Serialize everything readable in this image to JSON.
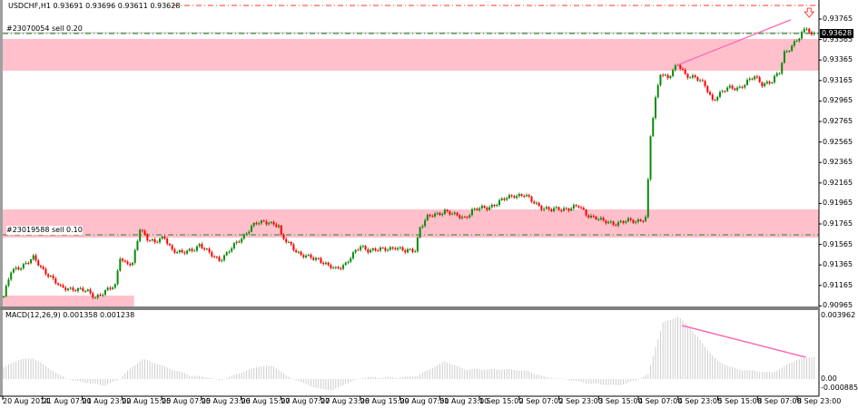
{
  "window": {
    "symbol_header": "USDCHF,H1  0.93691 0.93696 0.93611 0.93628",
    "current_price": "0.93628"
  },
  "orders": [
    {
      "label": "#23070054 sell 0.20",
      "price": 0.93623,
      "color": "#2e7d32"
    },
    {
      "label": "#23019588 sell 0.10",
      "price": 0.91659,
      "color": "#2e7d32"
    }
  ],
  "stop_line": {
    "price": 0.93898,
    "color": "#ff3030"
  },
  "zones": [
    {
      "top": 0.9357,
      "bottom": 0.93261,
      "from_bar": 0,
      "to_bar": 330
    },
    {
      "top": 0.91907,
      "bottom": 0.91632,
      "from_bar": 0,
      "to_bar": 330
    },
    {
      "top": 0.91066,
      "bottom": 0.909,
      "from_bar": 0,
      "to_bar": 53
    }
  ],
  "colors": {
    "bull": "#0a8a0a",
    "bear": "#ff0000",
    "zone": "#ffc0cb",
    "trendline": "#ff69b4",
    "histogram": "#c8c8c8"
  },
  "price_axis": [
    "0.93765",
    "0.93565",
    "0.93365",
    "0.93165",
    "0.92965",
    "0.92765",
    "0.92565",
    "0.92365",
    "0.92165",
    "0.91965",
    "0.91765",
    "0.91565",
    "0.91365",
    "0.91165",
    "0.90965"
  ],
  "macd": {
    "header": "MACD(12,26,9) 0.001358 0.001238",
    "axis_top": "0.003962",
    "axis_zero": "0.00",
    "axis_bottom": "-0.000885"
  },
  "time_axis": [
    "20 Aug 2014",
    "21 Aug 07:00",
    "21 Aug 23:00",
    "22 Aug 15:00",
    "25 Aug 07:00",
    "25 Aug 23:00",
    "26 Aug 15:00",
    "27 Aug 07:00",
    "27 Aug 23:00",
    "28 Aug 15:00",
    "29 Aug 07:00",
    "31 Aug 23:00",
    "1 Sep 15:00",
    "2 Sep 07:00",
    "2 Sep 23:00",
    "3 Sep 15:00",
    "4 Sep 07:00",
    "4 Sep 23:00",
    "5 Sep 15:00",
    "8 Sep 07:00",
    "8 Sep 23:00"
  ],
  "chart_data": {
    "type": "candlestick",
    "timeframe": "H1",
    "ylim": [
      0.909,
      0.9392
    ],
    "close_path": [
      [
        1,
        0.91137
      ],
      [
        3,
        0.91296
      ],
      [
        6,
        0.9134
      ],
      [
        12,
        0.91429
      ],
      [
        15,
        0.9134
      ],
      [
        19,
        0.91252
      ],
      [
        23,
        0.91137
      ],
      [
        28,
        0.91137
      ],
      [
        34,
        0.91101
      ],
      [
        37,
        0.91057
      ],
      [
        41,
        0.91101
      ],
      [
        45,
        0.91163
      ],
      [
        47,
        0.91455
      ],
      [
        49,
        0.91384
      ],
      [
        52,
        0.91366
      ],
      [
        55,
        0.91721
      ],
      [
        58,
        0.91632
      ],
      [
        61,
        0.91579
      ],
      [
        65,
        0.91632
      ],
      [
        68,
        0.91517
      ],
      [
        72,
        0.91473
      ],
      [
        76,
        0.91517
      ],
      [
        79,
        0.91562
      ],
      [
        83,
        0.91473
      ],
      [
        87,
        0.9142
      ],
      [
        90,
        0.91473
      ],
      [
        96,
        0.91632
      ],
      [
        100,
        0.91738
      ],
      [
        103,
        0.91774
      ],
      [
        107,
        0.91791
      ],
      [
        111,
        0.91738
      ],
      [
        112,
        0.91632
      ],
      [
        116,
        0.91562
      ],
      [
        120,
        0.91455
      ],
      [
        123,
        0.91437
      ],
      [
        127,
        0.91429
      ],
      [
        131,
        0.91349
      ],
      [
        134,
        0.91322
      ],
      [
        138,
        0.91384
      ],
      [
        142,
        0.91491
      ],
      [
        144,
        0.91544
      ],
      [
        147,
        0.91517
      ],
      [
        153,
        0.91508
      ],
      [
        158,
        0.91544
      ],
      [
        162,
        0.91491
      ],
      [
        166,
        0.91517
      ],
      [
        168,
        0.91738
      ],
      [
        171,
        0.91827
      ],
      [
        175,
        0.91862
      ],
      [
        178,
        0.91898
      ],
      [
        182,
        0.91845
      ],
      [
        186,
        0.91827
      ],
      [
        189,
        0.91898
      ],
      [
        195,
        0.91924
      ],
      [
        199,
        0.91969
      ],
      [
        202,
        0.92004
      ],
      [
        206,
        0.92048
      ],
      [
        210,
        0.92048
      ],
      [
        213,
        0.91986
      ],
      [
        217,
        0.91933
      ],
      [
        221,
        0.91898
      ],
      [
        226,
        0.91915
      ],
      [
        232,
        0.91933
      ],
      [
        235,
        0.91862
      ],
      [
        239,
        0.91827
      ],
      [
        242,
        0.91783
      ],
      [
        246,
        0.91774
      ],
      [
        252,
        0.91791
      ],
      [
        255,
        0.91791
      ],
      [
        259,
        0.91827
      ],
      [
        260,
        0.92181
      ],
      [
        261,
        0.92623
      ],
      [
        263,
        0.92977
      ],
      [
        265,
        0.93243
      ],
      [
        268,
        0.93199
      ],
      [
        272,
        0.93314
      ],
      [
        275,
        0.93225
      ],
      [
        279,
        0.93199
      ],
      [
        283,
        0.9311
      ],
      [
        286,
        0.92977
      ],
      [
        288,
        0.93022
      ],
      [
        292,
        0.93084
      ],
      [
        297,
        0.93101
      ],
      [
        303,
        0.93199
      ],
      [
        306,
        0.93137
      ],
      [
        310,
        0.93154
      ],
      [
        313,
        0.93243
      ],
      [
        315,
        0.93438
      ],
      [
        318,
        0.93508
      ],
      [
        321,
        0.93579
      ],
      [
        324,
        0.93685
      ],
      [
        326,
        0.93615
      ],
      [
        327,
        0.93628
      ]
    ],
    "macd_histogram_path": [
      [
        1,
        0.0008
      ],
      [
        6,
        0.0012
      ],
      [
        12,
        0.0013
      ],
      [
        17,
        0.0008
      ],
      [
        23,
        0.0002
      ],
      [
        28,
        -0.0001
      ],
      [
        36,
        -0.0003
      ],
      [
        41,
        -0.0004
      ],
      [
        47,
        0
      ],
      [
        50,
        0.0005
      ],
      [
        56,
        0.00125
      ],
      [
        61,
        0.001
      ],
      [
        68,
        0.0006
      ],
      [
        76,
        0.0002
      ],
      [
        83,
        0.0001
      ],
      [
        87,
        -0.0001
      ],
      [
        94,
        0.0003
      ],
      [
        103,
        0.0008
      ],
      [
        109,
        0.0008
      ],
      [
        114,
        0.0002
      ],
      [
        120,
        -0.0002
      ],
      [
        127,
        -0.0006
      ],
      [
        133,
        -0.0007
      ],
      [
        138,
        -0.0003
      ],
      [
        145,
        0.0001
      ],
      [
        160,
        0.0001
      ],
      [
        167,
        0.0002
      ],
      [
        178,
        0.0011
      ],
      [
        186,
        0.0006
      ],
      [
        204,
        0.0006
      ],
      [
        211,
        0.0005
      ],
      [
        219,
        0.0001
      ],
      [
        226,
        0
      ],
      [
        237,
        -0.0003
      ],
      [
        248,
        -0.0004
      ],
      [
        255,
        -0.0001
      ],
      [
        260,
        0.0003
      ],
      [
        263,
        0.002
      ],
      [
        266,
        0.0035
      ],
      [
        272,
        0.0039
      ],
      [
        277,
        0.0032
      ],
      [
        283,
        0.002
      ],
      [
        288,
        0.0011
      ],
      [
        296,
        0.0006
      ],
      [
        310,
        0.0004
      ],
      [
        314,
        0.0007
      ],
      [
        320,
        0.0012
      ],
      [
        327,
        0.0014
      ]
    ],
    "macd_ylim": [
      -0.000885,
      0.003962
    ],
    "trendlines": [
      {
        "pane": "price",
        "from": [
          272,
          0.93314
        ],
        "to": [
          318,
          0.93758
        ]
      },
      {
        "pane": "macd",
        "from": [
          274,
          0.00334
        ],
        "to": [
          324,
          0.00136
        ]
      }
    ],
    "sell_arrow": {
      "bar": 325,
      "price": 0.938
    }
  }
}
